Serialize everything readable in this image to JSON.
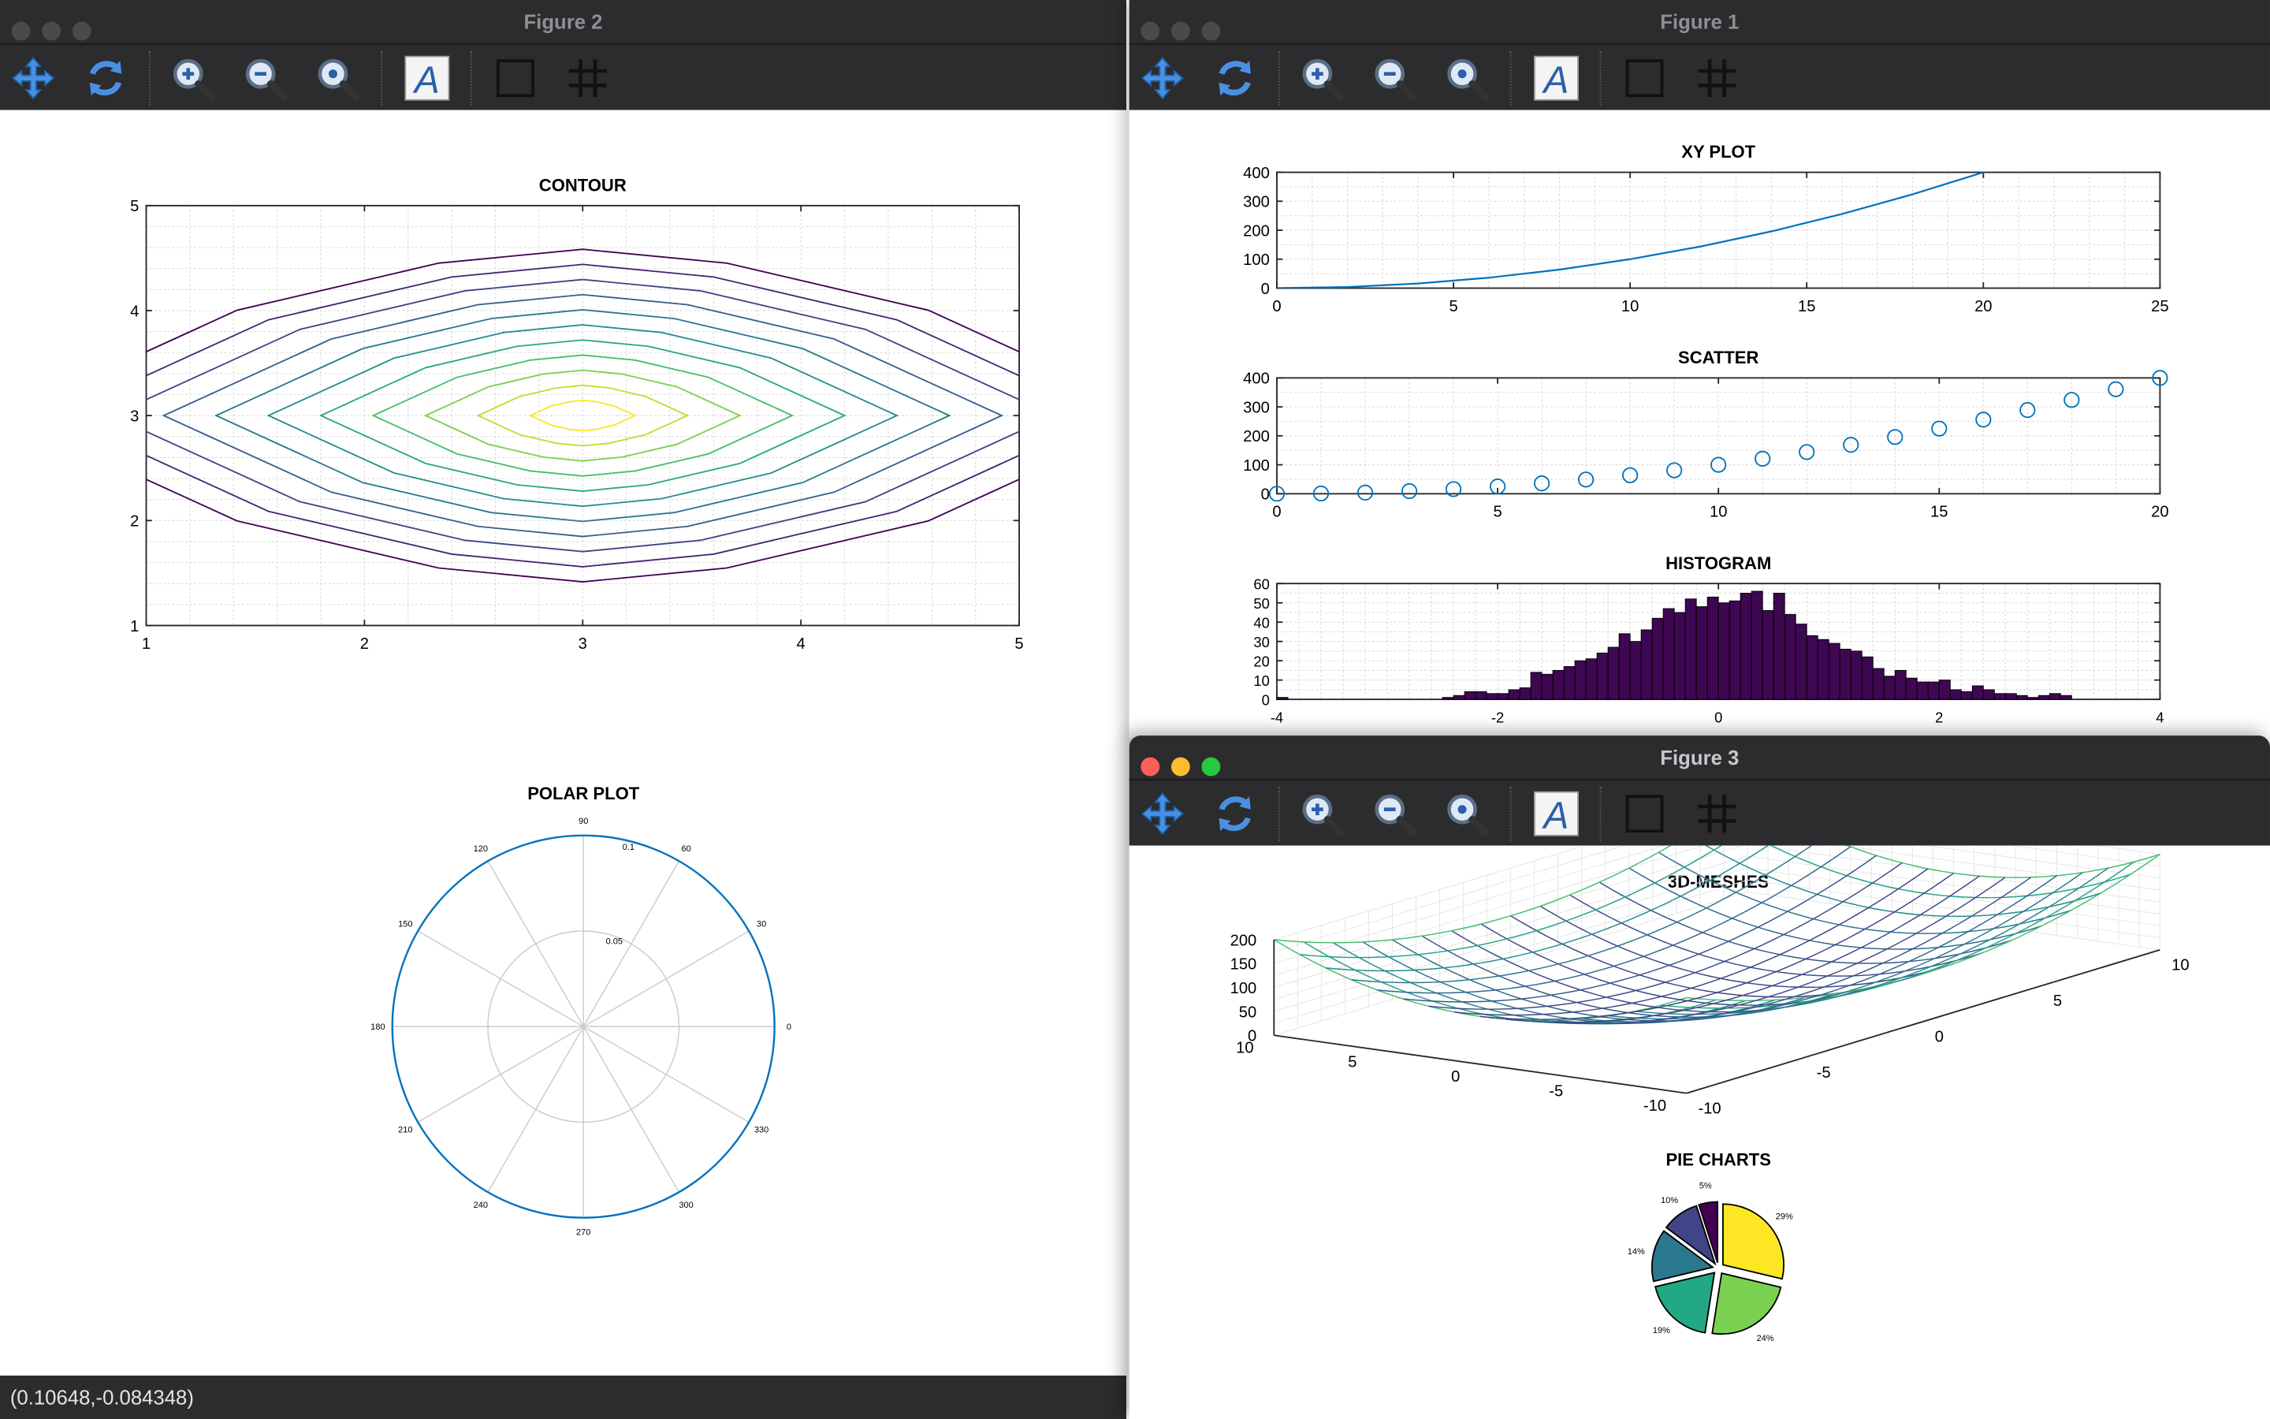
{
  "windows": {
    "fig2": {
      "title": "Figure 2"
    },
    "fig1": {
      "title": "Figure 1"
    },
    "fig3": {
      "title": "Figure 3"
    }
  },
  "toolbar": [
    "pan-icon",
    "rotate-icon",
    "zoom-in-icon",
    "zoom-out-icon",
    "zoom-reset-icon",
    "text-icon",
    "axes-box-icon",
    "grid-icon"
  ],
  "status": {
    "coords": "(0.10648,-0.084348)"
  },
  "colors": {
    "line": "#0072bd",
    "hist": "#3e0751",
    "titlebar": "#2c2c2e",
    "grid": "#e0e0e0"
  },
  "chart_data": [
    {
      "type": "contour",
      "title": "CONTOUR",
      "xlim": [
        1,
        5
      ],
      "ylim": [
        1,
        5
      ],
      "xticks": [
        "1",
        "2",
        "3",
        "4",
        "5"
      ],
      "yticks": [
        "1",
        "2",
        "3",
        "4",
        "5"
      ],
      "center": [
        3,
        3
      ],
      "levels": 11
    },
    {
      "type": "polar",
      "title": "POLAR PLOT",
      "angle_ticks": [
        "0",
        "30",
        "60",
        "90",
        "120",
        "150",
        "180",
        "210",
        "240",
        "270",
        "300",
        "330"
      ],
      "radial_ticks": [
        "0.05",
        "0.1"
      ],
      "rlim": [
        0,
        0.1
      ],
      "r": 0.1
    },
    {
      "type": "line",
      "title": "XY PLOT",
      "x": [
        0,
        2,
        4,
        6,
        8,
        10,
        12,
        14,
        16,
        18,
        20,
        21
      ],
      "y": [
        0,
        4,
        16,
        36,
        64,
        100,
        144,
        196,
        256,
        324,
        400,
        441
      ],
      "xlim": [
        0,
        25
      ],
      "ylim": [
        0,
        400
      ],
      "xticks": [
        "0",
        "5",
        "10",
        "15",
        "20",
        "25"
      ],
      "yticks": [
        "0",
        "100",
        "200",
        "300",
        "400"
      ]
    },
    {
      "type": "scatter",
      "title": "SCATTER",
      "x": [
        0,
        1,
        2,
        3,
        4,
        5,
        6,
        7,
        8,
        9,
        10,
        11,
        12,
        13,
        14,
        15,
        16,
        17,
        18,
        19,
        20
      ],
      "y": [
        0,
        1,
        4,
        9,
        16,
        25,
        36,
        49,
        64,
        81,
        100,
        121,
        144,
        169,
        196,
        225,
        256,
        289,
        324,
        361,
        400
      ],
      "xlim": [
        0,
        20
      ],
      "ylim": [
        0,
        400
      ],
      "xticks": [
        "0",
        "5",
        "10",
        "15",
        "20"
      ],
      "yticks": [
        "0",
        "100",
        "200",
        "300",
        "400"
      ]
    },
    {
      "type": "bar",
      "title": "HISTOGRAM",
      "bin_start": -4,
      "bin_width": 0.1,
      "counts": [
        0,
        0,
        0,
        0,
        0,
        1,
        0,
        0,
        0,
        0,
        0,
        0,
        0,
        0,
        0,
        0,
        0,
        0,
        0,
        0,
        0,
        0,
        0,
        0,
        0,
        0,
        0,
        0,
        0,
        0,
        0,
        0,
        0,
        0,
        0,
        0,
        0,
        0,
        0,
        0,
        0,
        0,
        0,
        0,
        0,
        0,
        0,
        0,
        0,
        0,
        0,
        0,
        0,
        0,
        0,
        0,
        0,
        0,
        0,
        0,
        0,
        0,
        0,
        0,
        0,
        0,
        0,
        0,
        0,
        0,
        0,
        0,
        0,
        0,
        0,
        0,
        0,
        0,
        0,
        0
      ],
      "counts_visible": [
        1,
        0,
        0,
        0,
        0,
        0,
        0,
        0,
        0,
        0,
        0,
        0,
        0,
        0,
        0,
        1,
        2,
        4,
        4,
        3,
        3,
        5,
        6,
        14,
        13,
        15,
        17,
        20,
        21,
        24,
        27,
        34,
        30,
        36,
        42,
        47,
        45,
        52,
        48,
        53,
        50,
        51,
        55,
        56,
        46,
        55,
        44,
        39,
        33,
        31,
        29,
        26,
        25,
        22,
        16,
        12,
        15,
        11,
        9,
        9,
        10,
        5,
        4,
        7,
        5,
        3,
        3,
        2,
        1,
        2,
        3,
        2,
        0,
        0,
        0,
        0,
        0,
        0,
        0,
        0
      ],
      "xlim": [
        -4,
        4
      ],
      "ylim": [
        0,
        60
      ],
      "xticks": [
        "-4",
        "-2",
        "0",
        "2",
        "4"
      ],
      "yticks": [
        "0",
        "10",
        "20",
        "30",
        "40",
        "50",
        "60"
      ]
    },
    {
      "type": "surface",
      "title": "3D-MESHES",
      "function": "x^2+y^2",
      "xlim": [
        -10,
        10
      ],
      "ylim": [
        -10,
        10
      ],
      "zlim": [
        0,
        200
      ],
      "xticks": [
        "-10",
        "-5",
        "0",
        "5",
        "10"
      ],
      "yticks": [
        "-10",
        "-5",
        "0",
        "5",
        "10"
      ],
      "zticks": [
        "0",
        "50",
        "100",
        "150",
        "200"
      ]
    },
    {
      "type": "pie",
      "title": "PIE CHARTS",
      "values": [
        29,
        24,
        19,
        14,
        10,
        5
      ],
      "labels": [
        "29%",
        "24%",
        "19%",
        "14%",
        "10%",
        "5%"
      ],
      "colors": [
        "#fde725",
        "#7ad151",
        "#22a884",
        "#2a788e",
        "#414487",
        "#440154"
      ]
    }
  ]
}
